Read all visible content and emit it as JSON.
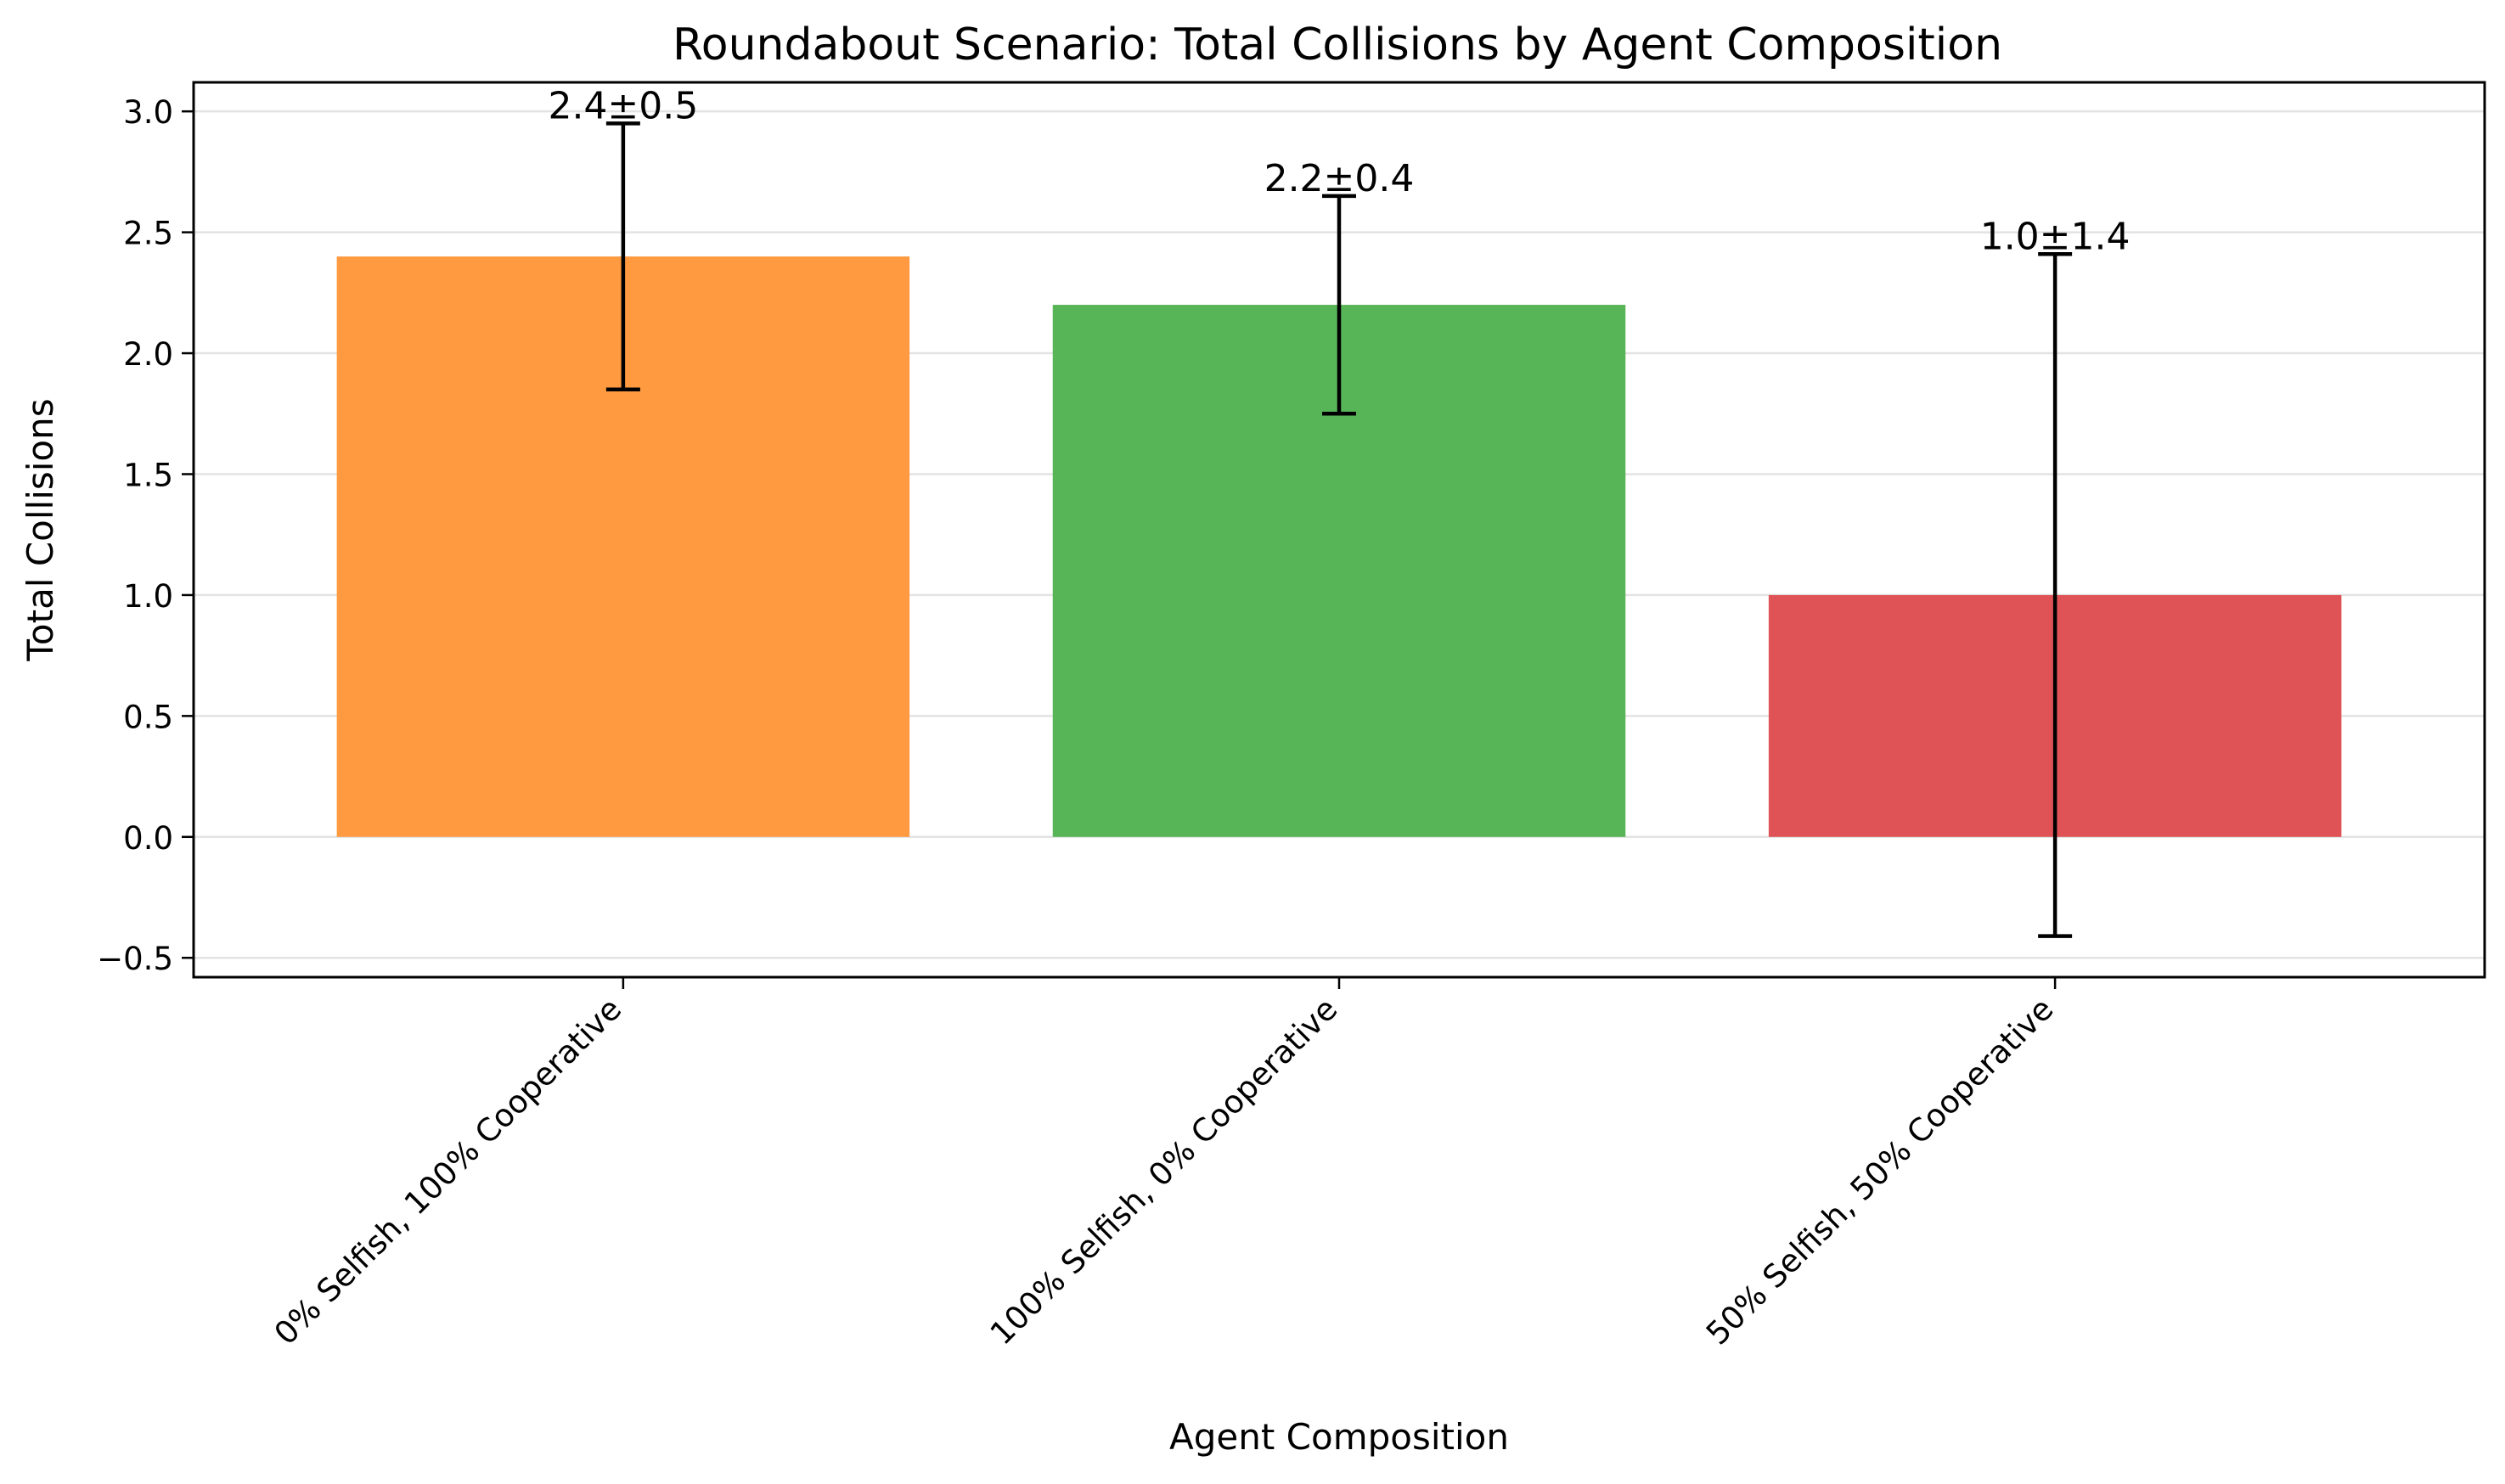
{
  "chart_data": {
    "type": "bar",
    "title": "Roundabout Scenario: Total Collisions by Agent Composition",
    "xlabel": "Agent Composition",
    "ylabel": "Total Collisions",
    "categories": [
      "0% Selfish, 100% Cooperative",
      "100% Selfish, 0% Cooperative",
      "50% Selfish, 50% Cooperative"
    ],
    "values": [
      2.4,
      2.2,
      1.0
    ],
    "errors": [
      0.55,
      0.45,
      1.41
    ],
    "value_labels": [
      "2.4±0.5",
      "2.2±0.4",
      "1.0±1.4"
    ],
    "colors": [
      "#ff9a40",
      "#57b457",
      "#df5255"
    ],
    "ylim": [
      -0.58,
      3.12
    ],
    "yticks": [
      -0.5,
      0.0,
      0.5,
      1.0,
      1.5,
      2.0,
      2.5,
      3.0
    ],
    "ytick_labels": [
      "−0.5",
      "0.0",
      "0.5",
      "1.0",
      "1.5",
      "2.0",
      "2.5",
      "3.0"
    ],
    "grid": "horizontal",
    "legend": "none"
  }
}
